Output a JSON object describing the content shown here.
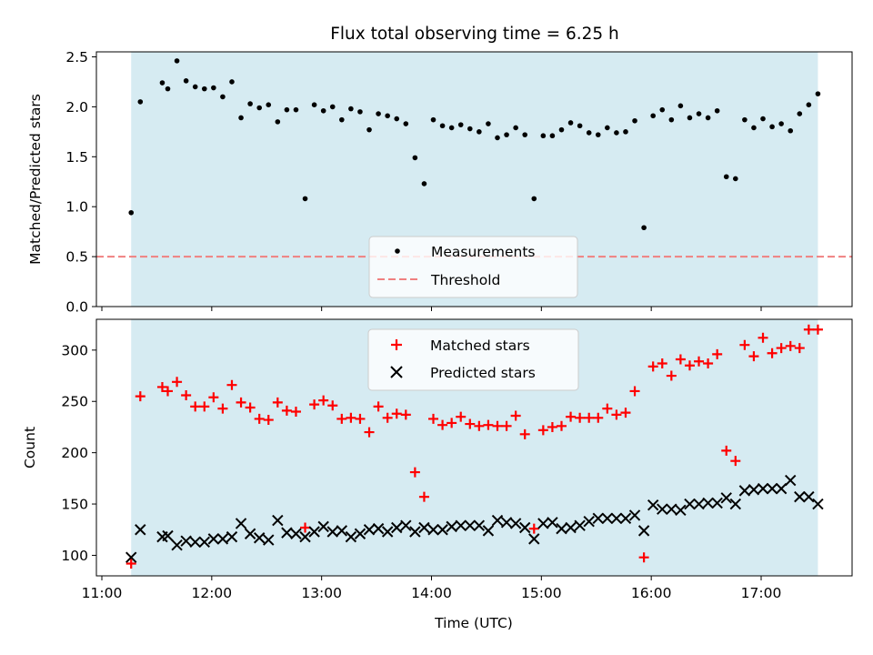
{
  "chart_data": [
    {
      "type": "scatter",
      "title": "Flux total observing time = 6.25 h",
      "xlabel": "",
      "ylabel": "Matched/Predicted stars",
      "xlim": [
        "11:00",
        "17:50"
      ],
      "ylim": [
        0,
        2.55
      ],
      "x_tick_labels": [],
      "y_ticks": [
        0.0,
        0.5,
        1.0,
        1.5,
        2.0,
        2.5
      ],
      "y_tick_labels": [
        "0.0",
        "0.5",
        "1.0",
        "1.5",
        "2.0",
        "2.5"
      ],
      "shaded_span": {
        "from": "11:16",
        "to": "17:31",
        "color": "#add8e6"
      },
      "grid": false,
      "legend_position": "lower center",
      "series": [
        {
          "name": "Measurements",
          "marker": "dot",
          "color": "#000000",
          "x": [
            "11:16",
            "11:21",
            "11:33",
            "11:36",
            "11:41",
            "11:46",
            "11:51",
            "11:56",
            "12:01",
            "12:06",
            "12:11",
            "12:16",
            "12:21",
            "12:26",
            "12:31",
            "12:36",
            "12:41",
            "12:46",
            "12:51",
            "12:56",
            "13:01",
            "13:06",
            "13:11",
            "13:16",
            "13:21",
            "13:26",
            "13:31",
            "13:36",
            "13:41",
            "13:46",
            "13:51",
            "13:56",
            "14:01",
            "14:06",
            "14:11",
            "14:16",
            "14:21",
            "14:26",
            "14:31",
            "14:36",
            "14:41",
            "14:46",
            "14:51",
            "14:56",
            "15:01",
            "15:06",
            "15:11",
            "15:16",
            "15:21",
            "15:26",
            "15:31",
            "15:36",
            "15:41",
            "15:46",
            "15:51",
            "15:56",
            "16:01",
            "16:06",
            "16:11",
            "16:16",
            "16:21",
            "16:26",
            "16:31",
            "16:36",
            "16:41",
            "16:46",
            "16:51",
            "16:56",
            "17:01",
            "17:06",
            "17:11",
            "17:16",
            "17:21",
            "17:26",
            "17:31"
          ],
          "y": [
            0.94,
            2.05,
            2.24,
            2.18,
            2.46,
            2.26,
            2.2,
            2.18,
            2.19,
            2.1,
            2.25,
            1.89,
            2.03,
            1.99,
            2.02,
            1.85,
            1.97,
            1.97,
            1.08,
            2.02,
            1.96,
            2.0,
            1.87,
            1.98,
            1.95,
            1.77,
            1.93,
            1.91,
            1.88,
            1.83,
            1.49,
            1.23,
            1.87,
            1.81,
            1.79,
            1.82,
            1.78,
            1.75,
            1.83,
            1.69,
            1.72,
            1.79,
            1.72,
            1.08,
            1.71,
            1.71,
            1.77,
            1.84,
            1.81,
            1.74,
            1.72,
            1.79,
            1.74,
            1.75,
            1.86,
            0.79,
            1.91,
            1.97,
            1.87,
            2.01,
            1.89,
            1.93,
            1.89,
            1.96,
            1.3,
            1.28,
            1.87,
            1.79,
            1.88,
            1.8,
            1.83,
            1.76,
            1.93,
            2.02,
            2.13
          ]
        },
        {
          "name": "Threshold",
          "style": "dashed",
          "color": "#f08080",
          "x": [
            "11:00",
            "17:50"
          ],
          "y": [
            0.5,
            0.5
          ]
        }
      ]
    },
    {
      "type": "scatter",
      "title": "",
      "xlabel": "Time (UTC)",
      "ylabel": "Count",
      "xlim": [
        "11:00",
        "17:50"
      ],
      "ylim": [
        80,
        330
      ],
      "x_ticks": [
        "11:00",
        "12:00",
        "13:00",
        "14:00",
        "15:00",
        "16:00",
        "17:00"
      ],
      "x_tick_labels": [
        "11:00",
        "12:00",
        "13:00",
        "14:00",
        "15:00",
        "16:00",
        "17:00"
      ],
      "y_ticks": [
        100,
        150,
        200,
        250,
        300
      ],
      "y_tick_labels": [
        "100",
        "150",
        "200",
        "250",
        "300"
      ],
      "shaded_span": {
        "from": "11:16",
        "to": "17:31",
        "color": "#add8e6"
      },
      "grid": false,
      "legend_position": "upper center",
      "series": [
        {
          "name": "Matched stars",
          "marker": "plus",
          "color": "#ff0000",
          "x": [
            "11:16",
            "11:21",
            "11:33",
            "11:36",
            "11:41",
            "11:46",
            "11:51",
            "11:56",
            "12:01",
            "12:06",
            "12:11",
            "12:16",
            "12:21",
            "12:26",
            "12:31",
            "12:36",
            "12:41",
            "12:46",
            "12:51",
            "12:56",
            "13:01",
            "13:06",
            "13:11",
            "13:16",
            "13:21",
            "13:26",
            "13:31",
            "13:36",
            "13:41",
            "13:46",
            "13:51",
            "13:56",
            "14:01",
            "14:06",
            "14:11",
            "14:16",
            "14:21",
            "14:26",
            "14:31",
            "14:36",
            "14:41",
            "14:46",
            "14:51",
            "14:56",
            "15:01",
            "15:06",
            "15:11",
            "15:16",
            "15:21",
            "15:26",
            "15:31",
            "15:36",
            "15:41",
            "15:46",
            "15:51",
            "15:56",
            "16:01",
            "16:06",
            "16:11",
            "16:16",
            "16:21",
            "16:26",
            "16:31",
            "16:36",
            "16:41",
            "16:46",
            "16:51",
            "16:56",
            "17:01",
            "17:06",
            "17:11",
            "17:16",
            "17:21",
            "17:26",
            "17:31"
          ],
          "y": [
            92,
            255,
            264,
            260,
            269,
            256,
            245,
            245,
            254,
            243,
            266,
            249,
            244,
            233,
            232,
            249,
            241,
            240,
            127,
            247,
            251,
            246,
            233,
            234,
            233,
            220,
            245,
            234,
            238,
            237,
            181,
            157,
            233,
            227,
            229,
            235,
            228,
            226,
            227,
            226,
            226,
            236,
            218,
            126,
            222,
            225,
            226,
            235,
            234,
            234,
            234,
            243,
            237,
            239,
            260,
            98,
            284,
            287,
            275,
            291,
            285,
            289,
            287,
            296,
            202,
            192,
            305,
            294,
            312,
            297,
            302,
            304,
            302,
            320,
            320
          ]
        },
        {
          "name": "Predicted stars",
          "marker": "x",
          "color": "#000000",
          "x": [
            "11:16",
            "11:21",
            "11:33",
            "11:36",
            "11:41",
            "11:46",
            "11:51",
            "11:56",
            "12:01",
            "12:06",
            "12:11",
            "12:16",
            "12:21",
            "12:26",
            "12:31",
            "12:36",
            "12:41",
            "12:46",
            "12:51",
            "12:56",
            "13:01",
            "13:06",
            "13:11",
            "13:16",
            "13:21",
            "13:26",
            "13:31",
            "13:36",
            "13:41",
            "13:46",
            "13:51",
            "13:56",
            "14:01",
            "14:06",
            "14:11",
            "14:16",
            "14:21",
            "14:26",
            "14:31",
            "14:36",
            "14:41",
            "14:46",
            "14:51",
            "14:56",
            "15:01",
            "15:06",
            "15:11",
            "15:16",
            "15:21",
            "15:26",
            "15:31",
            "15:36",
            "15:41",
            "15:46",
            "15:51",
            "15:56",
            "16:01",
            "16:06",
            "16:11",
            "16:16",
            "16:21",
            "16:26",
            "16:31",
            "16:36",
            "16:41",
            "16:46",
            "16:51",
            "16:56",
            "17:01",
            "17:06",
            "17:11",
            "17:16",
            "17:21",
            "17:26",
            "17:31"
          ],
          "y": [
            98,
            125,
            118,
            119,
            110,
            114,
            113,
            113,
            116,
            116,
            118,
            131,
            121,
            117,
            115,
            134,
            122,
            121,
            118,
            123,
            128,
            123,
            124,
            118,
            121,
            125,
            126,
            123,
            127,
            129,
            123,
            127,
            125,
            125,
            128,
            129,
            129,
            129,
            124,
            134,
            132,
            131,
            127,
            116,
            131,
            132,
            126,
            127,
            129,
            133,
            136,
            136,
            136,
            136,
            139,
            124,
            149,
            145,
            145,
            144,
            150,
            150,
            151,
            151,
            156,
            150,
            163,
            164,
            165,
            165,
            165,
            173,
            157,
            157,
            150
          ]
        }
      ]
    }
  ]
}
